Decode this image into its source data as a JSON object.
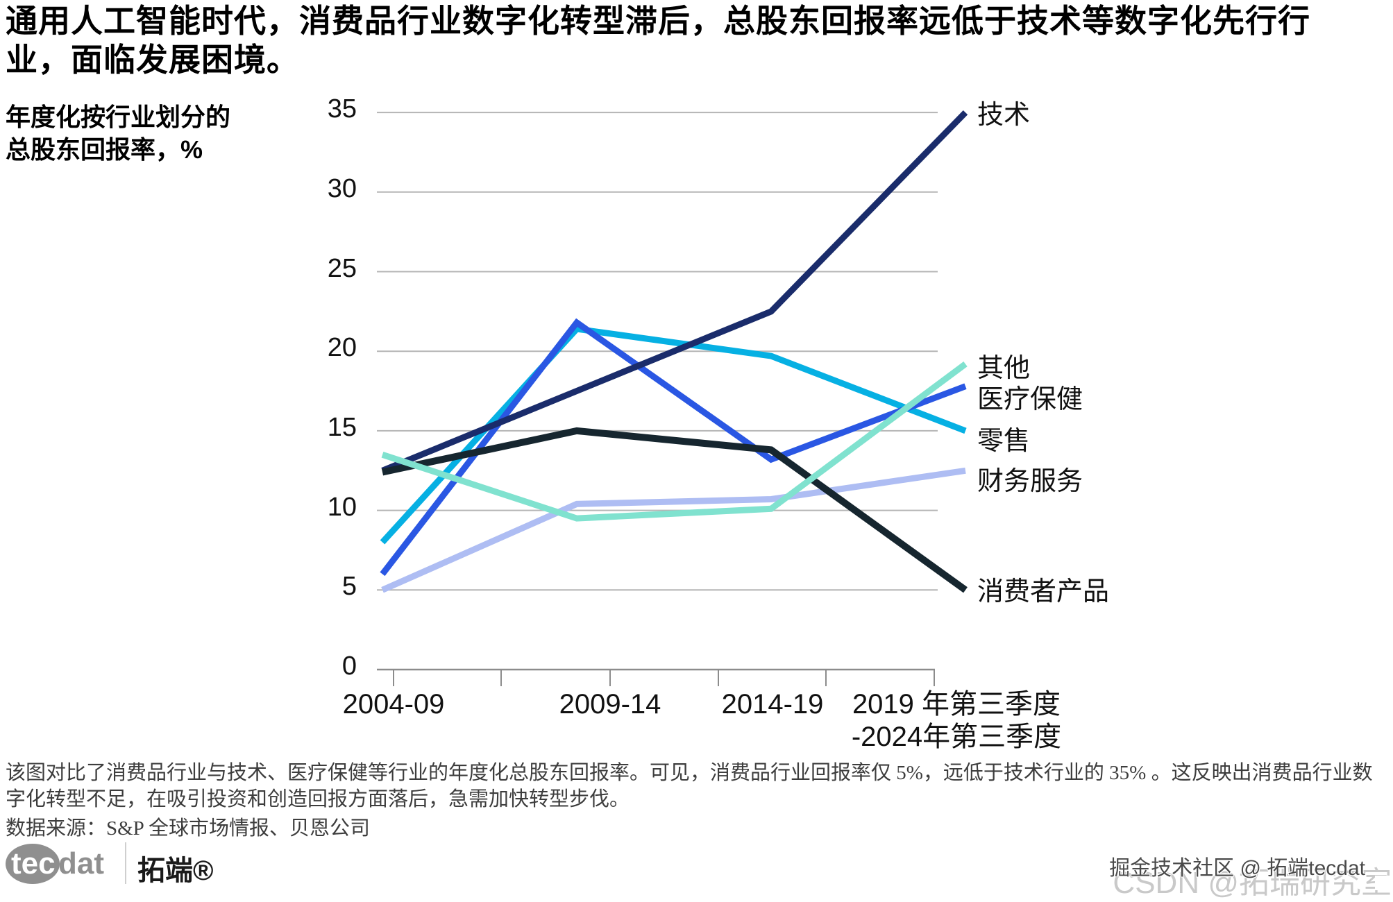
{
  "title": "通用人工智能时代，消费品行业数字化转型滞后，总股东回报率远低于技术等数字化先行行业，面临发展困境。",
  "y_axis_title": "年度化按行业划分的\n总股东回报率，%",
  "chart_data": {
    "type": "line",
    "categories": [
      "2004-09",
      "2009-14",
      "2014-19",
      "2019 年第三季度\n-2024年第三季度"
    ],
    "series": [
      {
        "name": "财务服务",
        "color": "#aebdf3",
        "values": [
          5.0,
          10.4,
          10.7,
          12.5
        ]
      },
      {
        "name": "零售",
        "color": "#06b0e3",
        "values": [
          8.0,
          21.4,
          19.7,
          15.0
        ]
      },
      {
        "name": "医疗保健",
        "color": "#2a57e3",
        "values": [
          6.0,
          21.8,
          13.2,
          17.8
        ]
      },
      {
        "name": "技术",
        "color": "#1a2c6b",
        "values": [
          12.5,
          17.5,
          22.5,
          35.0
        ]
      },
      {
        "name": "消费者产品",
        "color": "#16262f",
        "values": [
          12.4,
          15.0,
          13.8,
          5.0
        ]
      },
      {
        "name": "其他",
        "color": "#80e2cf",
        "values": [
          13.5,
          9.5,
          10.1,
          19.2
        ]
      }
    ],
    "ylim": [
      0,
      35
    ],
    "yticks": [
      0,
      5,
      10,
      15,
      20,
      25,
      30,
      35
    ],
    "grid": "horizontal",
    "legend_position": "labels-at-line-ends",
    "gridline_color": "#b5b5b5",
    "axis_color": "#8c8c8c"
  },
  "caption": "该图对比了消费品行业与技术、医疗保健等行业的年度化总股东回报率。可见，消费品行业回报率仅 5%，远低于技术行业的 35% 。这反映出消费品行业数字化转型不足，在吸引投资和创造回报方面落后，急需加快转型步伐。",
  "source": "数据来源：S&P 全球市场情报、贝恩公司",
  "logo": {
    "tec": "tec",
    "dat": "dat",
    "brand": "拓端®"
  },
  "watermarks": {
    "back": "CSDN @拓瑞研究室",
    "front": "掘金技术社区 @ 拓端tecdat"
  }
}
